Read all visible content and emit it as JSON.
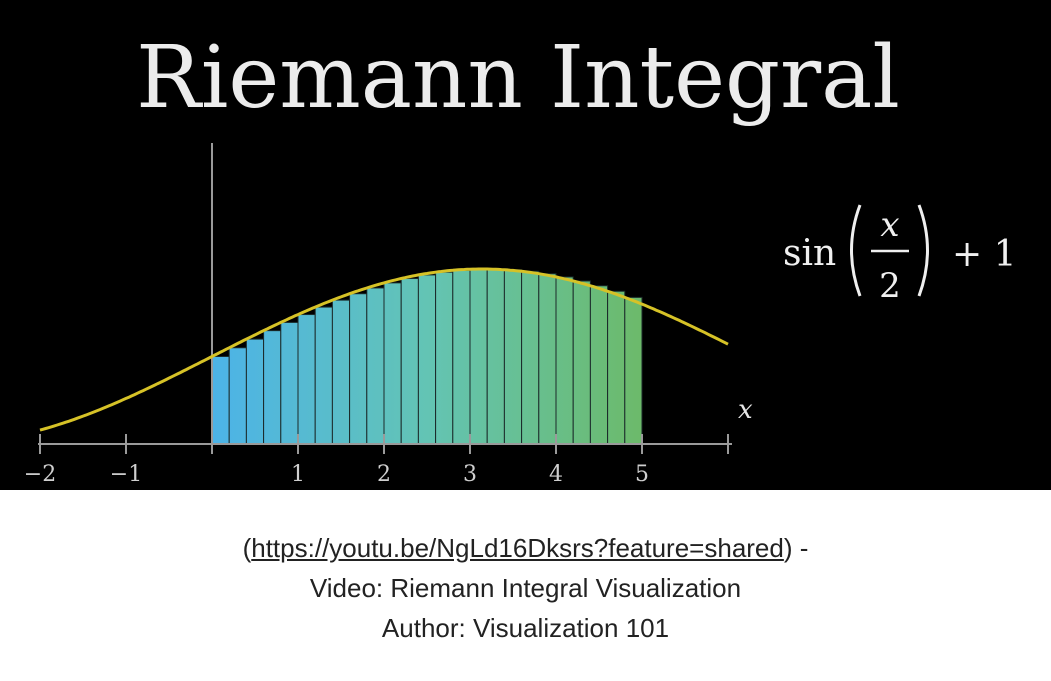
{
  "video": {
    "title": "Riemann Integral",
    "formula": {
      "fn": "sin",
      "numerator": "x",
      "denominator": "2",
      "suffix": "+ 1"
    },
    "axis_variable": "x",
    "tick_labels": [
      "−2",
      "−1",
      "1",
      "2",
      "3",
      "4",
      "5"
    ],
    "tick_values": [
      -2,
      -1,
      1,
      2,
      3,
      4,
      5
    ],
    "x_range": [
      -2,
      6
    ],
    "y_range": [
      0,
      2.6
    ],
    "integral_interval": [
      0,
      5
    ],
    "rectangle_count": 25,
    "curve_color": "#d6c227",
    "rect_gradient": [
      "#4cb3e8",
      "#63c4b4",
      "#6cba6a"
    ]
  },
  "caption": {
    "open_paren": "(",
    "link_text": "https://youtu.be/NgLd16Dksrs?feature=shared",
    "close_paren": ") -",
    "line2": "Video: Riemann Integral Visualization",
    "line3": "Author: Visualization 101"
  }
}
